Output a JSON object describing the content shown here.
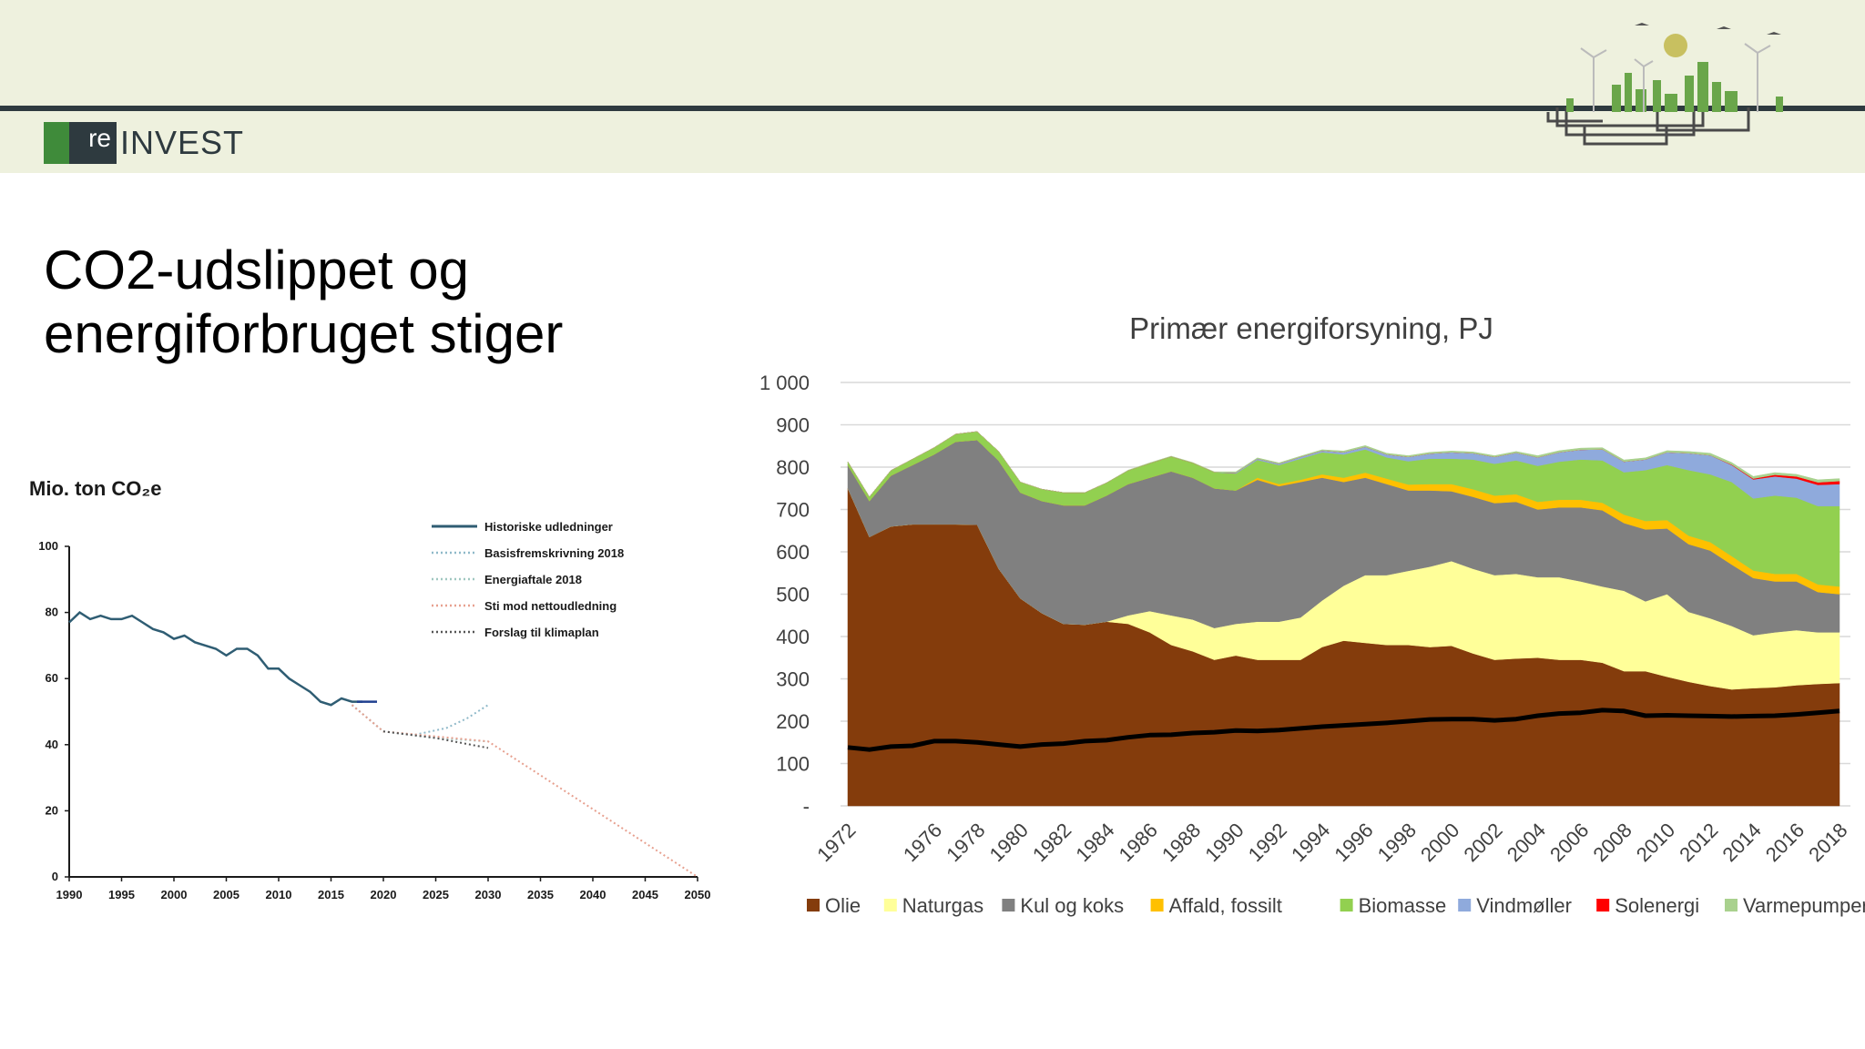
{
  "slide": {
    "title_line1": "CO2-udslippet og",
    "title_line2": "energiforbruget stiger",
    "logo_prefix": "re",
    "logo_text": "INVEST"
  },
  "colors": {
    "banner_bg": "#eef1de",
    "banner_line": "#2e3a3f",
    "logo_green": "#3f8b3a"
  },
  "chart_data": [
    {
      "type": "line",
      "title": "Mio. ton CO₂e",
      "xlim": [
        1990,
        2050
      ],
      "ylim": [
        0,
        100
      ],
      "x_ticks": [
        1990,
        1995,
        2000,
        2005,
        2010,
        2015,
        2020,
        2025,
        2030,
        2035,
        2040,
        2045,
        2050
      ],
      "y_ticks": [
        0,
        20,
        40,
        60,
        80,
        100
      ],
      "legend_position": "top-right",
      "series": [
        {
          "name": "Historiske udledninger",
          "color": "#2f5d73",
          "style": "solid",
          "x": [
            1990,
            1991,
            1992,
            1993,
            1994,
            1995,
            1996,
            1997,
            1998,
            1999,
            2000,
            2001,
            2002,
            2003,
            2004,
            2005,
            2006,
            2007,
            2008,
            2009,
            2010,
            2011,
            2012,
            2013,
            2014,
            2015,
            2016,
            2017,
            2018
          ],
          "y": [
            77,
            80,
            78,
            79,
            78,
            78,
            79,
            77,
            75,
            74,
            72,
            73,
            71,
            70,
            69,
            67,
            69,
            69,
            67,
            63,
            63,
            60,
            58,
            56,
            53,
            52,
            54,
            53,
            53
          ]
        },
        {
          "name": "Basisfremskrivning 2018",
          "color": "#8fb9c9",
          "style": "dotted",
          "x": [
            2017,
            2020,
            2023,
            2026,
            2028,
            2030
          ],
          "y": [
            52,
            44,
            43,
            45,
            48,
            52
          ]
        },
        {
          "name": "Energiaftale 2018",
          "color": "#9fc7c0",
          "style": "dotted",
          "x": [
            2017,
            2020,
            2025,
            2030
          ],
          "y": [
            52,
            44,
            42,
            41
          ]
        },
        {
          "name": "Sti mod nettoudledning",
          "color": "#e7a08f",
          "style": "dotted",
          "x": [
            2017,
            2020,
            2030,
            2050
          ],
          "y": [
            52,
            44,
            41,
            0
          ]
        },
        {
          "name": "Forslag til klimaplan",
          "color": "#555555",
          "style": "dotted",
          "x": [
            2020,
            2025,
            2030
          ],
          "y": [
            44,
            42,
            39
          ]
        }
      ]
    },
    {
      "type": "area",
      "title": "Primær energiforsyning, PJ",
      "xlim": [
        1972,
        2018
      ],
      "ylim": [
        0,
        1000
      ],
      "y_ticks": [
        0,
        100,
        200,
        300,
        400,
        500,
        600,
        700,
        800,
        900,
        1000
      ],
      "y_tick_labels": [
        "-",
        "100",
        "200",
        "300",
        "400",
        "500",
        "600",
        "700",
        "800",
        "900",
        "1 000"
      ],
      "x_tick_labels": [
        "1972",
        "1976",
        "1978",
        "1980",
        "1982",
        "1984",
        "1986",
        "1988",
        "1990",
        "1992",
        "1994",
        "1996",
        "1998",
        "2000",
        "2002",
        "2004",
        "2006",
        "2008",
        "2010",
        "2012",
        "2014",
        "2016",
        "2018"
      ],
      "x": [
        1972,
        1973,
        1974,
        1975,
        1976,
        1977,
        1978,
        1979,
        1980,
        1981,
        1982,
        1983,
        1984,
        1985,
        1986,
        1987,
        1988,
        1989,
        1990,
        1991,
        1992,
        1993,
        1994,
        1995,
        1996,
        1997,
        1998,
        1999,
        2000,
        2001,
        2002,
        2003,
        2004,
        2005,
        2006,
        2007,
        2008,
        2009,
        2010,
        2011,
        2012,
        2013,
        2014,
        2015,
        2016,
        2017,
        2018
      ],
      "stacked": true,
      "legend_position": "bottom",
      "series": [
        {
          "name": "Olie",
          "color": "#843c0c",
          "values": [
            750,
            635,
            660,
            665,
            665,
            665,
            664,
            560,
            490,
            455,
            430,
            428,
            435,
            430,
            410,
            380,
            365,
            345,
            355,
            345,
            345,
            345,
            375,
            390,
            385,
            380,
            380,
            375,
            378,
            360,
            345,
            348,
            350,
            345,
            345,
            338,
            318,
            318,
            305,
            293,
            283,
            275,
            278,
            280,
            285,
            288,
            290
          ]
        },
        {
          "name": "Naturgas",
          "color": "#ffff99",
          "values": [
            0,
            0,
            0,
            0,
            0,
            0,
            0,
            0,
            0,
            0,
            0,
            0,
            0,
            20,
            50,
            70,
            75,
            75,
            75,
            90,
            90,
            100,
            110,
            130,
            160,
            165,
            175,
            190,
            200,
            200,
            200,
            200,
            190,
            195,
            185,
            180,
            190,
            165,
            195,
            165,
            160,
            150,
            125,
            130,
            130,
            122,
            120
          ]
        },
        {
          "name": "Kul og koks",
          "color": "#808080",
          "values": [
            55,
            85,
            120,
            140,
            165,
            195,
            200,
            255,
            250,
            265,
            280,
            282,
            298,
            310,
            315,
            340,
            335,
            330,
            315,
            335,
            320,
            320,
            290,
            245,
            230,
            215,
            190,
            180,
            165,
            170,
            170,
            170,
            160,
            165,
            175,
            180,
            160,
            170,
            155,
            160,
            160,
            145,
            135,
            120,
            115,
            95,
            90
          ]
        },
        {
          "name": "Affald, fossilt",
          "color": "#ffc000",
          "values": [
            0,
            0,
            0,
            0,
            0,
            0,
            0,
            0,
            0,
            0,
            0,
            0,
            0,
            0,
            0,
            0,
            0,
            0,
            0,
            5,
            5,
            5,
            8,
            10,
            12,
            13,
            14,
            15,
            17,
            18,
            18,
            18,
            18,
            18,
            18,
            18,
            20,
            20,
            20,
            20,
            20,
            20,
            18,
            18,
            18,
            18,
            18
          ]
        },
        {
          "name": "Biomasse",
          "color": "#92d050",
          "values": [
            8,
            10,
            12,
            14,
            16,
            18,
            20,
            22,
            25,
            28,
            30,
            30,
            30,
            32,
            34,
            35,
            35,
            38,
            40,
            42,
            45,
            50,
            52,
            55,
            55,
            50,
            55,
            60,
            60,
            70,
            75,
            80,
            85,
            90,
            95,
            100,
            100,
            120,
            130,
            155,
            160,
            175,
            170,
            185,
            180,
            185,
            190
          ]
        },
        {
          "name": "Vindmøller",
          "color": "#8faadc",
          "values": [
            0,
            0,
            0,
            0,
            0,
            0,
            0,
            0,
            0,
            0,
            0,
            0,
            0,
            0,
            0,
            0,
            0,
            0,
            2,
            3,
            3,
            4,
            4,
            5,
            6,
            7,
            10,
            12,
            15,
            15,
            16,
            18,
            20,
            22,
            23,
            26,
            25,
            25,
            30,
            40,
            45,
            40,
            45,
            45,
            45,
            50,
            52
          ]
        },
        {
          "name": "Solenergi",
          "color": "#ff0000",
          "values": [
            0,
            0,
            0,
            0,
            0,
            0,
            0,
            0,
            0,
            0,
            0,
            0,
            0,
            0,
            0,
            0,
            0,
            0,
            0,
            0,
            0,
            0,
            0,
            0,
            0,
            0,
            0,
            0,
            0,
            0,
            0,
            0,
            0,
            0,
            0,
            0,
            0,
            0,
            0,
            0,
            0,
            1,
            2,
            4,
            5,
            6,
            7
          ]
        },
        {
          "name": "Varmepumper",
          "color": "#a9d18e",
          "values": [
            0,
            0,
            0,
            0,
            0,
            0,
            0,
            0,
            0,
            0,
            0,
            0,
            0,
            1,
            1,
            1,
            1,
            1,
            2,
            2,
            2,
            2,
            2,
            3,
            3,
            3,
            3,
            3,
            3,
            3,
            3,
            3,
            4,
            4,
            4,
            4,
            4,
            4,
            4,
            4,
            5,
            5,
            5,
            5,
            5,
            6,
            6
          ]
        }
      ],
      "overlay_line": {
        "color": "#000000",
        "values": [
          138,
          133,
          140,
          142,
          153,
          153,
          150,
          145,
          140,
          145,
          147,
          153,
          155,
          162,
          167,
          168,
          172,
          174,
          178,
          177,
          179,
          183,
          187,
          190,
          193,
          196,
          200,
          204,
          205,
          205,
          202,
          205,
          213,
          218,
          220,
          226,
          224,
          213,
          214,
          213,
          212,
          211,
          212,
          213,
          216,
          220,
          224
        ]
      }
    }
  ]
}
